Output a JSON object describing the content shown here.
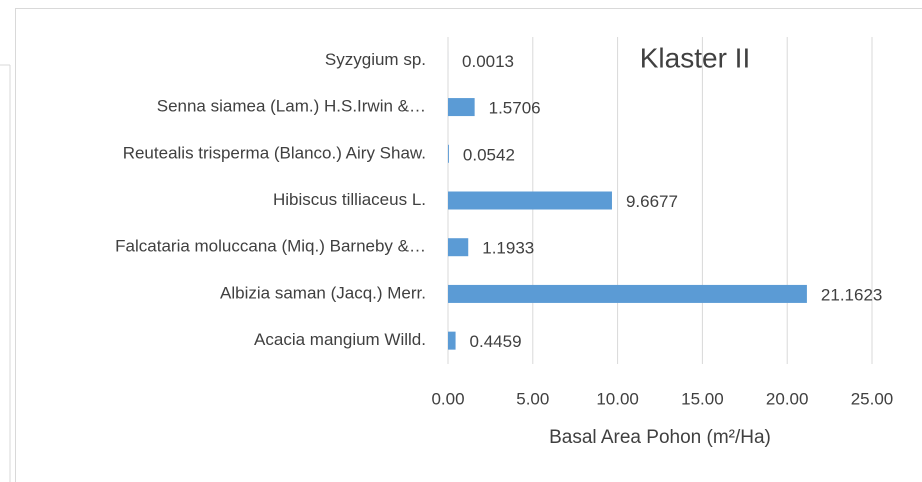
{
  "chart_data": {
    "type": "bar",
    "orientation": "horizontal",
    "title": "Klaster II",
    "categories": [
      "Syzygium sp.",
      "Senna siamea (Lam.) H.S.Irwin &…",
      "Reutealis trisperma (Blanco.) Airy Shaw.",
      "Hibiscus tilliaceus L.",
      "Falcataria moluccana (Miq.) Barneby &…",
      "Albizia saman (Jacq.) Merr.",
      "Acacia mangium Willd."
    ],
    "values": [
      0.0013,
      1.5706,
      0.0542,
      9.6677,
      1.1933,
      21.1623,
      0.4459
    ],
    "color": "#5b9bd5",
    "xlabel": "Basal Area Pohon (m²/Ha)",
    "xlim": [
      0,
      25
    ],
    "xticks": [
      {
        "value": 0,
        "label": "0.00"
      },
      {
        "value": 5,
        "label": "5.00"
      },
      {
        "value": 10,
        "label": "10.00"
      },
      {
        "value": 15,
        "label": "15.00"
      },
      {
        "value": 20,
        "label": "20.00"
      },
      {
        "value": 25,
        "label": "25.00"
      }
    ],
    "grid": true
  }
}
